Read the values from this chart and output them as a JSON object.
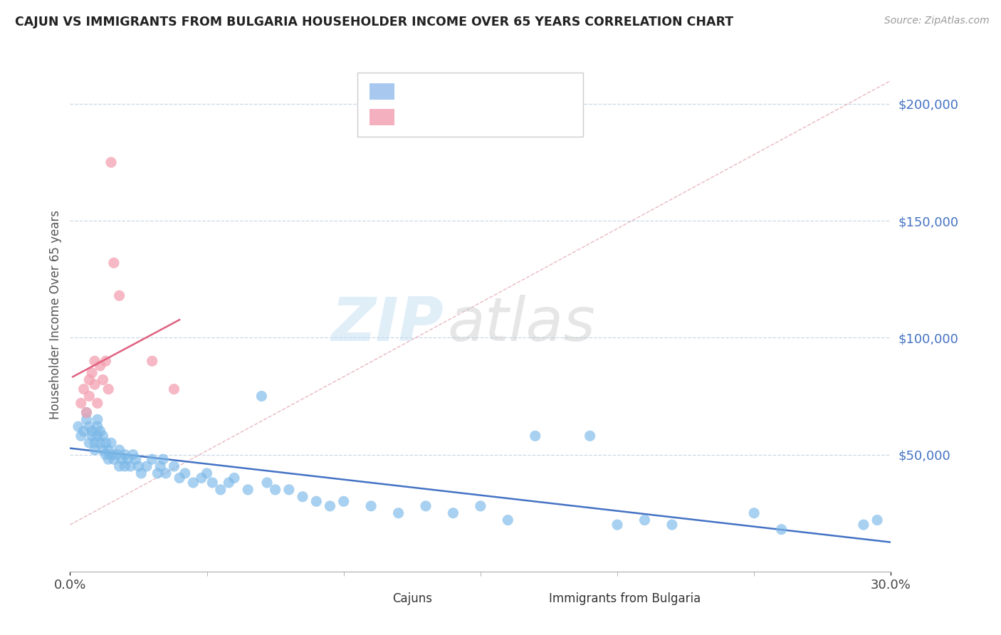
{
  "title": "CAJUN VS IMMIGRANTS FROM BULGARIA HOUSEHOLDER INCOME OVER 65 YEARS CORRELATION CHART",
  "source_text": "Source: ZipAtlas.com",
  "ylabel": "Householder Income Over 65 years",
  "xlim": [
    0.0,
    0.3
  ],
  "ylim": [
    0,
    220000
  ],
  "cajun_color": "#7ab8e8",
  "bulgaria_color": "#f4a0b0",
  "cajun_line_color": "#4472c4",
  "bulgaria_line_color": "#e06080",
  "diagonal_line_color": "#d0d0d0",
  "cajun_scatter": [
    [
      0.003,
      62000
    ],
    [
      0.004,
      58000
    ],
    [
      0.005,
      60000
    ],
    [
      0.006,
      65000
    ],
    [
      0.006,
      68000
    ],
    [
      0.007,
      62000
    ],
    [
      0.007,
      55000
    ],
    [
      0.008,
      60000
    ],
    [
      0.008,
      58000
    ],
    [
      0.009,
      52000
    ],
    [
      0.009,
      55000
    ],
    [
      0.01,
      62000
    ],
    [
      0.01,
      58000
    ],
    [
      0.01,
      65000
    ],
    [
      0.011,
      60000
    ],
    [
      0.011,
      55000
    ],
    [
      0.012,
      58000
    ],
    [
      0.012,
      52000
    ],
    [
      0.013,
      55000
    ],
    [
      0.013,
      50000
    ],
    [
      0.014,
      52000
    ],
    [
      0.014,
      48000
    ],
    [
      0.015,
      50000
    ],
    [
      0.015,
      55000
    ],
    [
      0.016,
      48000
    ],
    [
      0.017,
      50000
    ],
    [
      0.018,
      45000
    ],
    [
      0.018,
      52000
    ],
    [
      0.019,
      48000
    ],
    [
      0.02,
      50000
    ],
    [
      0.02,
      45000
    ],
    [
      0.021,
      48000
    ],
    [
      0.022,
      45000
    ],
    [
      0.023,
      50000
    ],
    [
      0.024,
      48000
    ],
    [
      0.025,
      45000
    ],
    [
      0.026,
      42000
    ],
    [
      0.028,
      45000
    ],
    [
      0.03,
      48000
    ],
    [
      0.032,
      42000
    ],
    [
      0.033,
      45000
    ],
    [
      0.034,
      48000
    ],
    [
      0.035,
      42000
    ],
    [
      0.038,
      45000
    ],
    [
      0.04,
      40000
    ],
    [
      0.042,
      42000
    ],
    [
      0.045,
      38000
    ],
    [
      0.048,
      40000
    ],
    [
      0.05,
      42000
    ],
    [
      0.052,
      38000
    ],
    [
      0.055,
      35000
    ],
    [
      0.058,
      38000
    ],
    [
      0.06,
      40000
    ],
    [
      0.065,
      35000
    ],
    [
      0.07,
      75000
    ],
    [
      0.072,
      38000
    ],
    [
      0.075,
      35000
    ],
    [
      0.08,
      35000
    ],
    [
      0.085,
      32000
    ],
    [
      0.09,
      30000
    ],
    [
      0.095,
      28000
    ],
    [
      0.1,
      30000
    ],
    [
      0.11,
      28000
    ],
    [
      0.12,
      25000
    ],
    [
      0.13,
      28000
    ],
    [
      0.14,
      25000
    ],
    [
      0.15,
      28000
    ],
    [
      0.16,
      22000
    ],
    [
      0.17,
      58000
    ],
    [
      0.19,
      58000
    ],
    [
      0.2,
      20000
    ],
    [
      0.21,
      22000
    ],
    [
      0.22,
      20000
    ],
    [
      0.25,
      25000
    ],
    [
      0.26,
      18000
    ],
    [
      0.29,
      20000
    ],
    [
      0.295,
      22000
    ]
  ],
  "bulgaria_scatter": [
    [
      0.004,
      72000
    ],
    [
      0.005,
      78000
    ],
    [
      0.006,
      68000
    ],
    [
      0.007,
      82000
    ],
    [
      0.007,
      75000
    ],
    [
      0.008,
      85000
    ],
    [
      0.009,
      80000
    ],
    [
      0.009,
      90000
    ],
    [
      0.01,
      72000
    ],
    [
      0.011,
      88000
    ],
    [
      0.012,
      82000
    ],
    [
      0.013,
      90000
    ],
    [
      0.014,
      78000
    ],
    [
      0.015,
      175000
    ],
    [
      0.016,
      132000
    ],
    [
      0.018,
      118000
    ],
    [
      0.03,
      90000
    ],
    [
      0.038,
      78000
    ]
  ]
}
